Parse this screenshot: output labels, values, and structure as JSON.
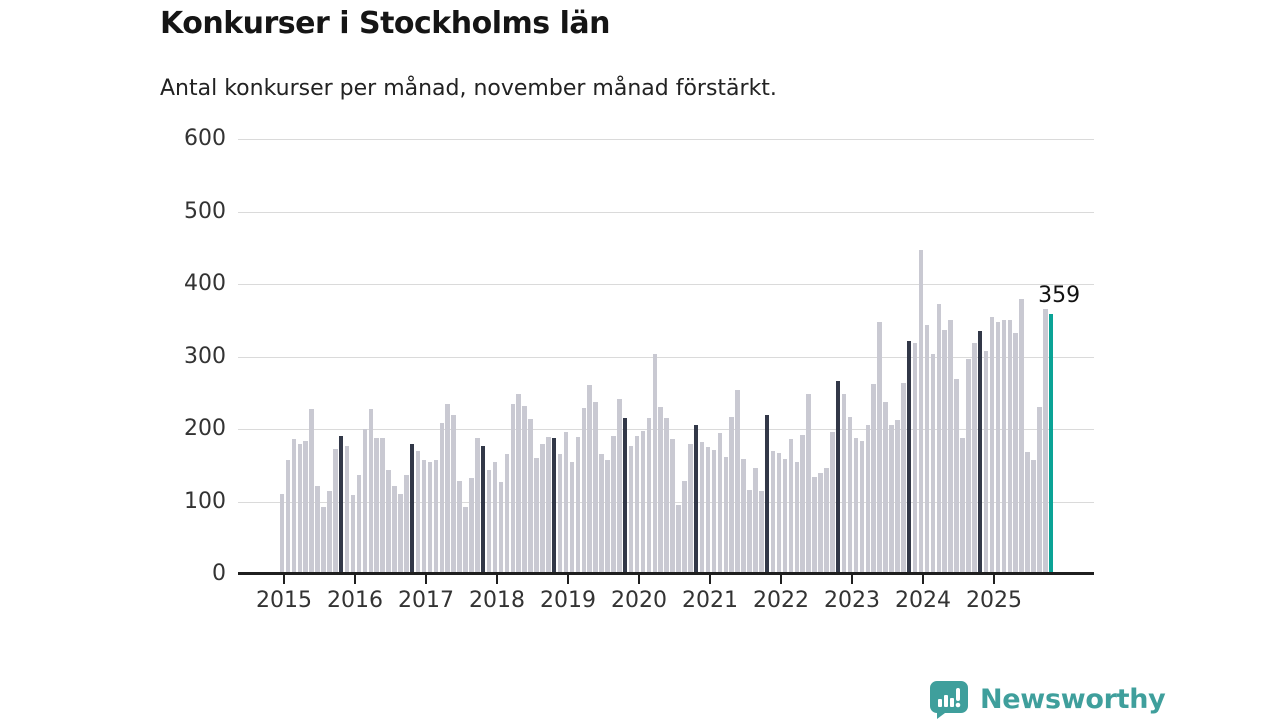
{
  "header": {
    "title": "Konkurser i Stockholms län",
    "subtitle": "Antal konkurser per månad, november månad förstärkt."
  },
  "chart_data": {
    "type": "bar",
    "title": "Konkurser i Stockholms län",
    "subtitle": "Antal konkurser per månad, november månad förstärkt.",
    "x_unit": "month",
    "y_unit": "antal konkurser",
    "ylim": [
      0,
      600
    ],
    "yticks": [
      0,
      100,
      200,
      300,
      400,
      500,
      600
    ],
    "grid": "horizontal",
    "legend": "none",
    "year_ticks": [
      "2015",
      "2016",
      "2017",
      "2018",
      "2019",
      "2020",
      "2021",
      "2022",
      "2023",
      "2024",
      "2025"
    ],
    "highlight_rule": "November bars are dark; the latest bar (November 2025) is teal with a value label",
    "annotation": {
      "text": "359",
      "applies_to": "2025-11"
    },
    "colors": {
      "default_bar": "#c9c9d2",
      "november_bar": "#323848",
      "latest_bar": "#0aa396",
      "gridline": "#dadada",
      "axis": "#1f1f1f",
      "tick_label": "#333333"
    },
    "series": [
      {
        "year": 2015,
        "values": [
          110,
          157,
          186,
          180,
          184,
          228,
          121,
          92,
          115,
          172,
          190,
          177
        ]
      },
      {
        "year": 2016,
        "values": [
          109,
          136,
          200,
          228,
          187,
          187,
          144,
          122,
          111,
          136,
          180,
          170
        ]
      },
      {
        "year": 2017,
        "values": [
          157,
          154,
          157,
          209,
          234,
          220,
          129,
          93,
          132,
          188,
          176,
          143
        ]
      },
      {
        "year": 2018,
        "values": [
          154,
          127,
          166,
          235,
          248,
          232,
          214,
          160,
          180,
          189,
          188,
          165
        ]
      },
      {
        "year": 2019,
        "values": [
          196,
          155,
          189,
          229,
          261,
          238,
          165,
          157,
          191,
          242,
          215,
          177
        ]
      },
      {
        "year": 2020,
        "values": [
          190,
          198,
          215,
          304,
          230,
          215,
          186,
          95,
          128,
          180,
          205,
          182
        ]
      },
      {
        "year": 2021,
        "values": [
          175,
          171,
          195,
          161,
          217,
          254,
          159,
          116,
          146,
          114,
          220,
          170
        ]
      },
      {
        "year": 2022,
        "values": [
          167,
          159,
          186,
          154,
          192,
          249,
          134,
          139,
          146,
          196,
          266,
          248
        ]
      },
      {
        "year": 2023,
        "values": [
          216,
          187,
          183,
          205,
          262,
          348,
          237,
          206,
          212,
          264,
          321,
          319
        ]
      },
      {
        "year": 2024,
        "values": [
          447,
          344,
          303,
          373,
          337,
          351,
          269,
          187,
          296,
          319,
          335,
          307
        ]
      },
      {
        "year": 2025,
        "values": [
          355,
          348,
          350,
          351,
          333,
          379,
          169,
          157,
          230,
          366,
          359
        ]
      }
    ]
  },
  "footer": {
    "brand": "Newsworthy",
    "brand_color": "#3f9f9c",
    "logo_icon": "speech-bubble-bar-chart-icon"
  }
}
